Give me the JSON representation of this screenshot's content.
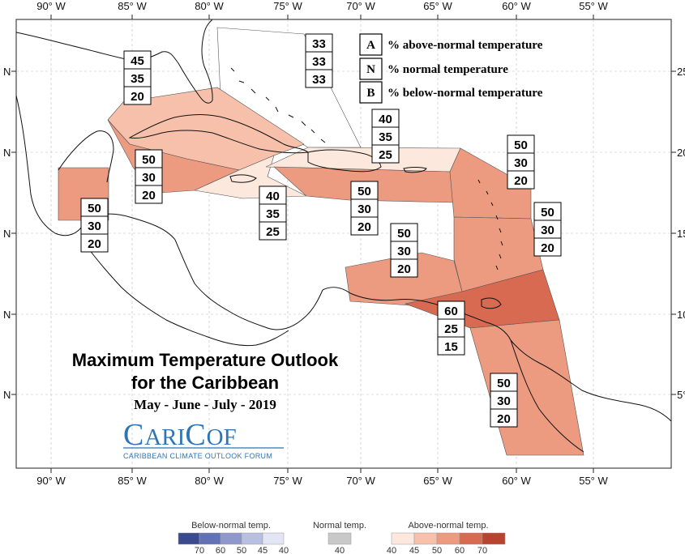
{
  "title": {
    "line1": "Maximum Temperature Outlook",
    "line2": "for the Caribbean",
    "season": "May - June - July - 2019"
  },
  "logo": {
    "c1": "C",
    "ari": "ARI",
    "c2": "C",
    "of": "OF",
    "subtitle": "CARIBBEAN CLIMATE OUTLOOK FORUM"
  },
  "abn_legend": [
    {
      "letter": "A",
      "text": "% above-normal temperature"
    },
    {
      "letter": "N",
      "text": "% normal temperature"
    },
    {
      "letter": "B",
      "text": "% below-normal temperature"
    }
  ],
  "axes": {
    "lon_labels": [
      "90° W",
      "85° W",
      "80° W",
      "75° W",
      "70° W",
      "65° W",
      "60° W",
      "55° W"
    ],
    "lat_labels_left": [
      "N",
      "N",
      "N",
      "N",
      "N"
    ],
    "lat_labels_right": [
      "25",
      "20",
      "15",
      "10",
      "5°"
    ]
  },
  "regions": [
    {
      "name": "bahamas",
      "above": "33",
      "normal": "33",
      "below": "33",
      "color": "#ffffff"
    },
    {
      "name": "cuba",
      "above": "45",
      "normal": "35",
      "below": "20",
      "color": "#f6c0aa"
    },
    {
      "name": "cayman-west-cuba",
      "above": "50",
      "normal": "30",
      "below": "20",
      "color": "#ec9a80"
    },
    {
      "name": "jamaica",
      "above": "40",
      "normal": "35",
      "below": "25",
      "color": "#fde8dd"
    },
    {
      "name": "belize",
      "above": "50",
      "normal": "30",
      "below": "20",
      "color": "#ec9a80"
    },
    {
      "name": "turks-caicos",
      "above": "40",
      "normal": "35",
      "below": "25",
      "color": "#fde8dd"
    },
    {
      "name": "hispaniola-puerto-rico",
      "above": "50",
      "normal": "30",
      "below": "20",
      "color": "#ec9a80"
    },
    {
      "name": "leeward-islands",
      "above": "50",
      "normal": "30",
      "below": "20",
      "color": "#ec9a80"
    },
    {
      "name": "windward-islands",
      "above": "50",
      "normal": "30",
      "below": "20",
      "color": "#ec9a80"
    },
    {
      "name": "abc-islands",
      "above": "50",
      "normal": "30",
      "below": "20",
      "color": "#ec9a80"
    },
    {
      "name": "trinidad-barbados",
      "above": "60",
      "normal": "25",
      "below": "15",
      "color": "#d86a52"
    },
    {
      "name": "guianas",
      "above": "50",
      "normal": "30",
      "below": "20",
      "color": "#ec9a80"
    }
  ],
  "colorbar": {
    "below_label": "Below-normal temp.",
    "normal_label": "Normal temp.",
    "above_label": "Above-normal temp.",
    "below_ticks": [
      "70",
      "60",
      "50",
      "45",
      "40"
    ],
    "normal_tick": "40",
    "above_ticks": [
      "40",
      "45",
      "50",
      "60",
      "70"
    ],
    "below_colors": [
      "#3a4a8c",
      "#6272b4",
      "#8f98cb",
      "#b9bfe0",
      "#e2e5f3"
    ],
    "normal_color": "#c8c8c8",
    "above_colors": [
      "#fde8dd",
      "#f6c0aa",
      "#ec9a80",
      "#d86a52",
      "#b8432f"
    ]
  }
}
